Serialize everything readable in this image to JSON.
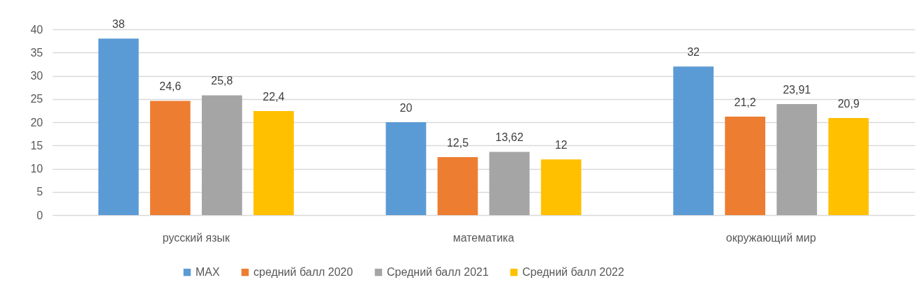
{
  "chart_data": {
    "type": "bar",
    "categories": [
      "русский язык",
      "математика",
      "окружающий мир"
    ],
    "series": [
      {
        "name": "MAX",
        "color": "#5b9bd5",
        "values": [
          38,
          20,
          32
        ],
        "value_labels": [
          "38",
          "20",
          "32"
        ]
      },
      {
        "name": "средний балл 2020",
        "color": "#ed7d31",
        "values": [
          24.6,
          12.5,
          21.2
        ],
        "value_labels": [
          "24,6",
          "12,5",
          "21,2"
        ]
      },
      {
        "name": "Средний балл 2021",
        "color": "#a5a5a5",
        "values": [
          25.8,
          13.62,
          23.91
        ],
        "value_labels": [
          "25,8",
          "13,62",
          "23,91"
        ]
      },
      {
        "name": "Средний балл 2022",
        "color": "#ffc000",
        "values": [
          22.4,
          12,
          20.9
        ],
        "value_labels": [
          "22,4",
          "12",
          "20,9"
        ]
      }
    ],
    "ylim": [
      0,
      40
    ],
    "yticks": [
      0,
      5,
      10,
      15,
      20,
      25,
      30,
      35,
      40
    ],
    "grid": "y",
    "legend": "bottom"
  }
}
